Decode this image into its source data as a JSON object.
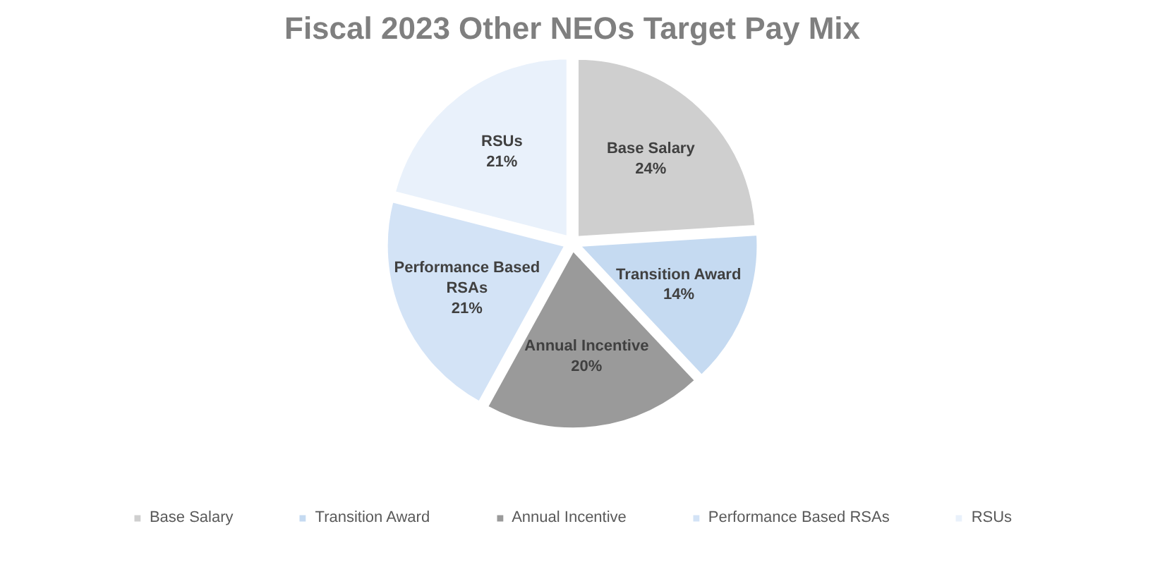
{
  "chart_data": {
    "type": "pie",
    "title": "Fiscal 2023 Other NEOs Target Pay Mix",
    "categories": [
      "Base Salary",
      "Transition Award",
      "Annual Incentive",
      "Performance Based RSAs",
      "RSUs"
    ],
    "values": [
      24,
      14,
      20,
      21,
      21
    ],
    "colors": [
      "#cfcfcf",
      "#c5daf1",
      "#9a9a9a",
      "#d3e3f6",
      "#e9f1fb"
    ],
    "value_labels": [
      "24%",
      "14%",
      "20%",
      "21%",
      "21%"
    ],
    "legend": "bottom"
  }
}
